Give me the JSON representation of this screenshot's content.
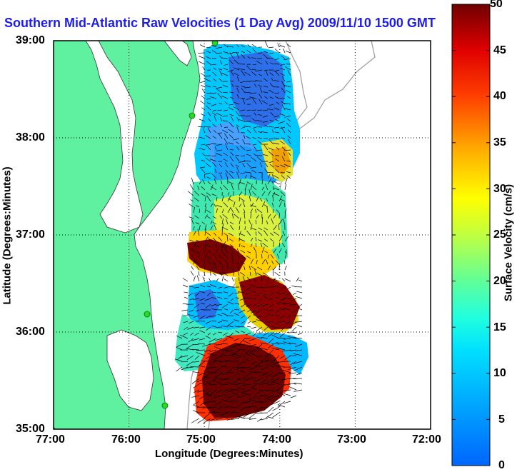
{
  "title": "Southern Mid-Atlantic Raw Velocities (1 Day Avg) 2009/11/10 1500 GMT",
  "x_axis": {
    "label": "Longitude (Degrees:Minutes)",
    "ticks": [
      "77:00",
      "76:00",
      "75:00",
      "74:00",
      "73:00",
      "72:00"
    ]
  },
  "y_axis": {
    "label": "Latitude (Degrees:Minutes)",
    "ticks": [
      "39:00",
      "38:00",
      "37:00",
      "36:00",
      "35:00"
    ]
  },
  "colorbar": {
    "label": "Surface Velocity (cm/s)",
    "ticks": [
      "0",
      "5",
      "10",
      "15",
      "20",
      "25",
      "30",
      "35",
      "40",
      "45",
      "50"
    ],
    "range": [
      0,
      50
    ],
    "colormap": "jet"
  },
  "map": {
    "lon_range": [
      -77,
      -72
    ],
    "lat_range": [
      35,
      39
    ],
    "land_color": "#5ff0a0",
    "grid": "dotted",
    "station_markers": 5
  }
}
